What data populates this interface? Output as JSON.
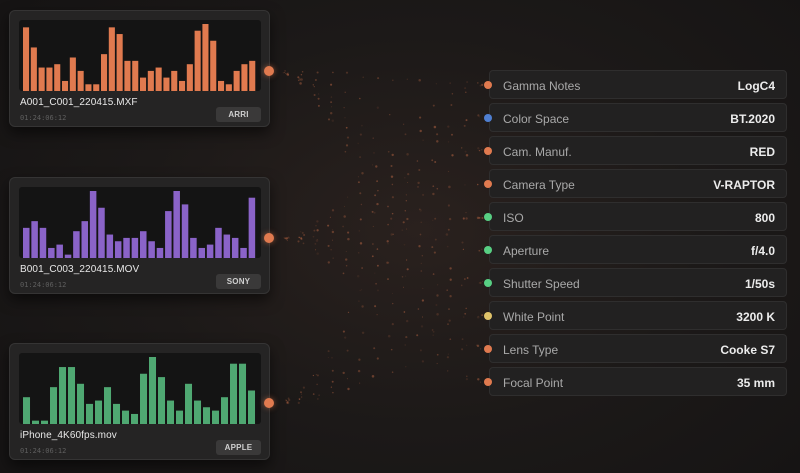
{
  "clips": [
    {
      "name": "A001_C001_220415.MXF",
      "timecode": "01:24:06:12",
      "badge": "ARRI",
      "color": "#e07a4f",
      "levels": [
        0.95,
        0.65,
        0.35,
        0.35,
        0.4,
        0.15,
        0.5,
        0.3,
        0.1,
        0.1,
        0.55,
        0.95,
        0.85,
        0.45,
        0.45,
        0.2,
        0.3,
        0.35,
        0.2,
        0.3,
        0.15,
        0.4,
        0.9,
        1.0,
        0.75,
        0.15,
        0.1,
        0.3,
        0.4,
        0.45
      ]
    },
    {
      "name": "B001_C003_220415.MOV",
      "timecode": "01:24:06:12",
      "badge": "SONY",
      "color": "#8a63c8",
      "levels": [
        0.45,
        0.55,
        0.45,
        0.15,
        0.2,
        0.05,
        0.4,
        0.55,
        1.0,
        0.75,
        0.35,
        0.25,
        0.3,
        0.3,
        0.4,
        0.25,
        0.15,
        0.7,
        1.0,
        0.8,
        0.3,
        0.15,
        0.2,
        0.45,
        0.35,
        0.3,
        0.15,
        0.9
      ]
    },
    {
      "name": "iPhone_4K60fps.mov",
      "timecode": "01:24:06:12",
      "badge": "APPLE",
      "color": "#4fa872",
      "levels": [
        0.4,
        0.05,
        0.05,
        0.55,
        0.85,
        0.85,
        0.6,
        0.3,
        0.35,
        0.55,
        0.3,
        0.2,
        0.15,
        0.75,
        1.0,
        0.7,
        0.35,
        0.2,
        0.6,
        0.35,
        0.25,
        0.2,
        0.4,
        0.9,
        0.9,
        0.5
      ]
    }
  ],
  "metadata": [
    {
      "label": "Gamma Notes",
      "value": "LogC4",
      "dot_color": "#e07a4f"
    },
    {
      "label": "Color Space",
      "value": "BT.2020",
      "dot_color": "#4f7fd1"
    },
    {
      "label": "Cam. Manuf.",
      "value": "RED",
      "dot_color": "#e07a4f"
    },
    {
      "label": "Camera Type",
      "value": "V-RAPTOR",
      "dot_color": "#e07a4f"
    },
    {
      "label": "ISO",
      "value": "800",
      "dot_color": "#58cf83"
    },
    {
      "label": "Aperture",
      "value": "f/4.0",
      "dot_color": "#58cf83"
    },
    {
      "label": "Shutter Speed",
      "value": "1/50s",
      "dot_color": "#58cf83"
    },
    {
      "label": "White Point",
      "value": "3200 K",
      "dot_color": "#e0c36a"
    },
    {
      "label": "Lens Type",
      "value": "Cooke S7",
      "dot_color": "#e07a4f"
    },
    {
      "label": "Focal Point",
      "value": "35 mm",
      "dot_color": "#e07a4f"
    }
  ],
  "colors": {
    "connector": "#e07a4f"
  }
}
